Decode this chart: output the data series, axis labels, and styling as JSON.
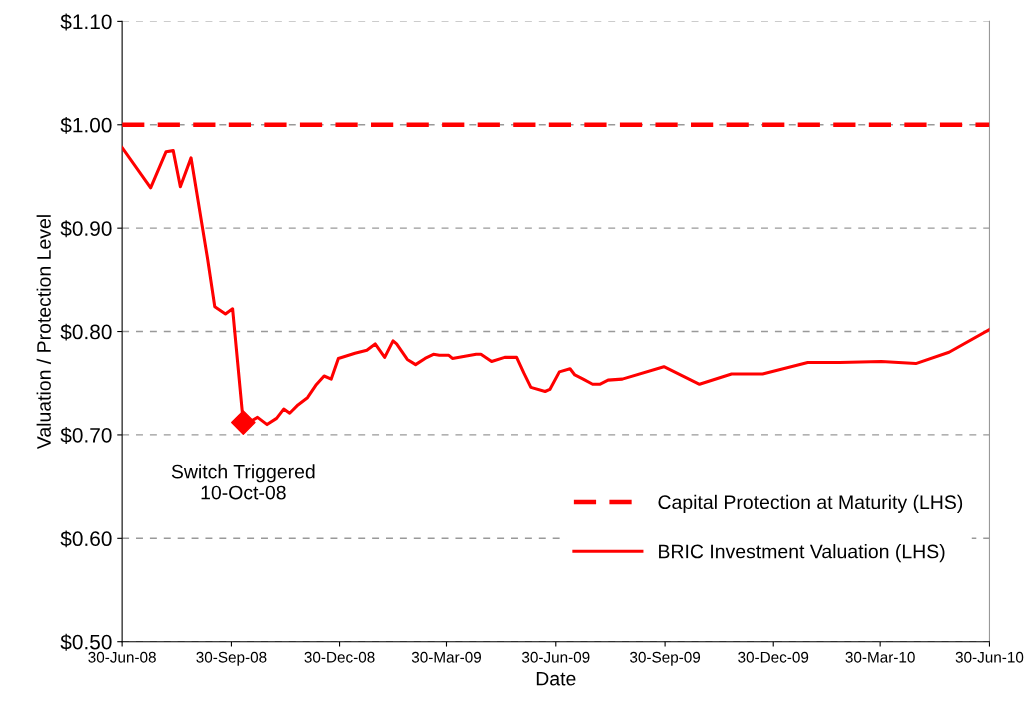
{
  "chart_data": {
    "type": "line",
    "xlabel": "Date",
    "ylabel": "Valuation / Protection Level",
    "xlim": [
      "2008-06-30",
      "2010-06-30"
    ],
    "xticks": [
      {
        "value": "2008-06-30",
        "label": "30-Jun-08"
      },
      {
        "value": "2008-09-30",
        "label": "30-Sep-08"
      },
      {
        "value": "2008-12-30",
        "label": "30-Dec-08"
      },
      {
        "value": "2009-03-30",
        "label": "30-Mar-09"
      },
      {
        "value": "2009-06-30",
        "label": "30-Jun-09"
      },
      {
        "value": "2009-09-30",
        "label": "30-Sep-09"
      },
      {
        "value": "2009-12-30",
        "label": "30-Dec-09"
      },
      {
        "value": "2010-03-30",
        "label": "30-Mar-10"
      },
      {
        "value": "2010-06-30",
        "label": "30-Jun-10"
      }
    ],
    "ylim": [
      0.5,
      1.1
    ],
    "yticks": [
      {
        "value": 0.5,
        "label": "$0.50"
      },
      {
        "value": 0.6,
        "label": "$0.60"
      },
      {
        "value": 0.7,
        "label": "$0.70"
      },
      {
        "value": 0.8,
        "label": "$0.80"
      },
      {
        "value": 0.9,
        "label": "$0.90"
      },
      {
        "value": 1.0,
        "label": "$1.00"
      },
      {
        "value": 1.1,
        "label": "$1.10"
      }
    ],
    "grid": "y",
    "legend": "bottom right",
    "series": [
      {
        "name": "Capital Protection at Maturity (LHS)",
        "color": "#ff0000",
        "line_style": "dashed",
        "x": [
          "2008-06-30",
          "2010-06-30"
        ],
        "values": [
          1.0,
          1.0
        ]
      },
      {
        "name": "BRIC Investment Valuation (LHS)",
        "color": "#ff0000",
        "line_style": "solid",
        "x": [
          "2008-06-30",
          "2008-07-24",
          "2008-08-06",
          "2008-08-12",
          "2008-08-18",
          "2008-08-27",
          "2008-09-10",
          "2008-09-16",
          "2008-09-25",
          "2008-10-01",
          "2008-10-10",
          "2008-10-16",
          "2008-10-22",
          "2008-10-30",
          "2008-11-07",
          "2008-11-13",
          "2008-11-18",
          "2008-11-25",
          "2008-12-03",
          "2008-12-10",
          "2008-12-17",
          "2008-12-23",
          "2008-12-29",
          "2009-01-12",
          "2009-01-22",
          "2009-01-29",
          "2009-02-06",
          "2009-02-13",
          "2009-02-16",
          "2009-02-25",
          "2009-03-04",
          "2009-03-12",
          "2009-03-19",
          "2009-03-24",
          "2009-04-01",
          "2009-04-04",
          "2009-04-24",
          "2009-04-28",
          "2009-05-07",
          "2009-05-18",
          "2009-05-28",
          "2009-06-03",
          "2009-06-09",
          "2009-06-21",
          "2009-06-25",
          "2009-07-03",
          "2009-07-12",
          "2009-07-16",
          "2009-07-23",
          "2009-07-31",
          "2009-08-06",
          "2009-08-13",
          "2009-08-25",
          "2009-09-29",
          "2009-10-29",
          "2009-11-25",
          "2009-12-21",
          "2010-01-28",
          "2010-02-24",
          "2010-03-31",
          "2010-04-29",
          "2010-05-27",
          "2010-06-30"
        ],
        "values": [
          0.978,
          0.939,
          0.974,
          0.975,
          0.94,
          0.968,
          0.87,
          0.824,
          0.817,
          0.822,
          0.712,
          0.713,
          0.717,
          0.71,
          0.716,
          0.725,
          0.721,
          0.729,
          0.736,
          0.748,
          0.757,
          0.754,
          0.774,
          0.779,
          0.782,
          0.788,
          0.775,
          0.791,
          0.788,
          0.773,
          0.768,
          0.774,
          0.778,
          0.777,
          0.777,
          0.774,
          0.778,
          0.778,
          0.771,
          0.775,
          0.775,
          0.76,
          0.746,
          0.742,
          0.744,
          0.761,
          0.764,
          0.758,
          0.754,
          0.749,
          0.749,
          0.753,
          0.754,
          0.766,
          0.749,
          0.759,
          0.759,
          0.77,
          0.77,
          0.771,
          0.769,
          0.78,
          0.802
        ]
      },
      {
        "color": "#ff0000",
        "type": "scatter",
        "marker": "diamond",
        "x": [
          "2008-10-10"
        ],
        "values": [
          0.712
        ]
      }
    ],
    "annotations": [
      {
        "text": "Switch Triggered\n10-Oct-08",
        "x": "2008-10-10",
        "y": 0.712
      }
    ]
  }
}
